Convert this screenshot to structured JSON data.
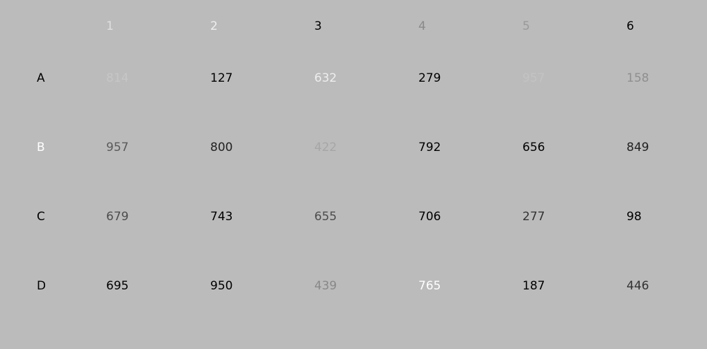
{
  "columns": [
    {
      "label": "1",
      "color": "#e0e0e0"
    },
    {
      "label": "2",
      "color": "#eeeeee"
    },
    {
      "label": "3",
      "color": "#000000"
    },
    {
      "label": "4",
      "color": "#8a8a8a"
    },
    {
      "label": "5",
      "color": "#999999"
    },
    {
      "label": "6",
      "color": "#000000"
    }
  ],
  "rows": [
    {
      "label": "A",
      "label_color": "#000000",
      "cells": [
        {
          "value": "814",
          "color": "#c6c6c6"
        },
        {
          "value": "127",
          "color": "#000000"
        },
        {
          "value": "632",
          "color": "#eeeeee"
        },
        {
          "value": "279",
          "color": "#000000"
        },
        {
          "value": "957",
          "color": "#c3c3c3"
        },
        {
          "value": "158",
          "color": "#8f8f8f"
        }
      ]
    },
    {
      "label": "B",
      "label_color": "#ffffff",
      "cells": [
        {
          "value": "957",
          "color": "#5a5a5a"
        },
        {
          "value": "800",
          "color": "#222222"
        },
        {
          "value": "422",
          "color": "#a6a6a6"
        },
        {
          "value": "792",
          "color": "#000000"
        },
        {
          "value": "656",
          "color": "#000000"
        },
        {
          "value": "849",
          "color": "#222222"
        }
      ]
    },
    {
      "label": "C",
      "label_color": "#000000",
      "cells": [
        {
          "value": "679",
          "color": "#4d4d4d"
        },
        {
          "value": "743",
          "color": "#000000"
        },
        {
          "value": "655",
          "color": "#4d4d4d"
        },
        {
          "value": "706",
          "color": "#000000"
        },
        {
          "value": "277",
          "color": "#333333"
        },
        {
          "value": "98",
          "color": "#000000"
        }
      ]
    },
    {
      "label": "D",
      "label_color": "#000000",
      "cells": [
        {
          "value": "695",
          "color": "#000000"
        },
        {
          "value": "950",
          "color": "#000000"
        },
        {
          "value": "439",
          "color": "#888888"
        },
        {
          "value": "765",
          "color": "#ffffff"
        },
        {
          "value": "187",
          "color": "#000000"
        },
        {
          "value": "446",
          "color": "#333333"
        }
      ]
    }
  ]
}
